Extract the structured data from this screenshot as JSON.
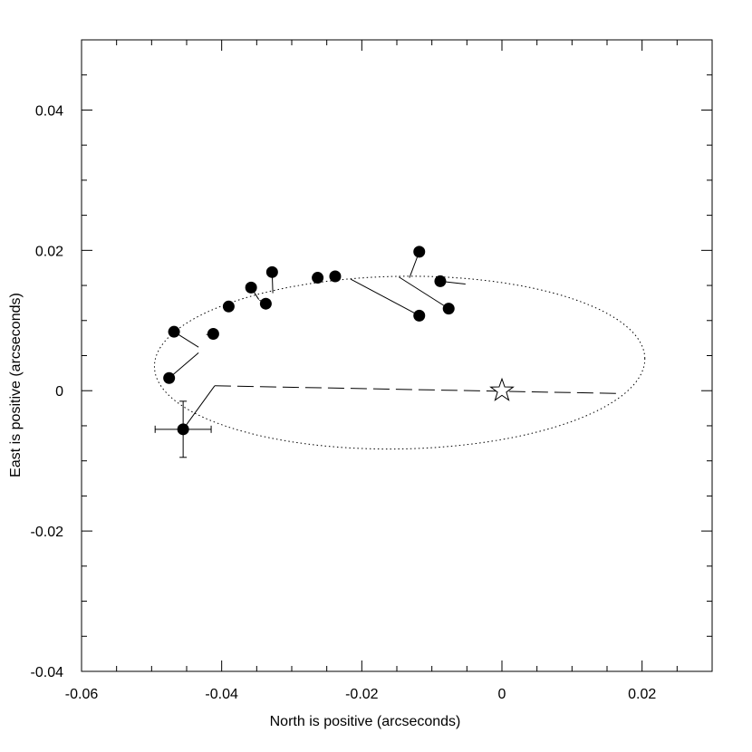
{
  "chart_data": {
    "type": "scatter",
    "xlabel": "North is positive (arcseconds)",
    "ylabel": "East is positive (arcseconds)",
    "xlim": [
      -0.06,
      0.03
    ],
    "ylim": [
      -0.04,
      0.05
    ],
    "x_ticks": [
      -0.06,
      -0.04,
      -0.02,
      0,
      0.02
    ],
    "x_tick_labels": [
      "-0.06",
      "-0.04",
      "-0.02",
      "0",
      "0.02"
    ],
    "y_ticks": [
      -0.04,
      -0.02,
      0,
      0.02,
      0.04
    ],
    "y_tick_labels": [
      "-0.04",
      "-0.02",
      "0",
      "0.02",
      "0.04"
    ],
    "x_minor_step": 0.005,
    "y_minor_step": 0.005,
    "grid": false,
    "points": [
      {
        "x": -0.0475,
        "y": 0.0018,
        "orbit_x": -0.0433,
        "orbit_y": 0.0054
      },
      {
        "x": -0.0468,
        "y": 0.0084,
        "orbit_x": -0.0433,
        "orbit_y": 0.0062
      },
      {
        "x": -0.0412,
        "y": 0.0081,
        "orbit_x": -0.0422,
        "orbit_y": 0.008
      },
      {
        "x": -0.039,
        "y": 0.012,
        "orbit_x": -0.0385,
        "orbit_y": 0.0119
      },
      {
        "x": -0.0358,
        "y": 0.0147,
        "orbit_x": -0.0347,
        "orbit_y": 0.013
      },
      {
        "x": -0.0337,
        "y": 0.0124,
        "orbit_x": -0.0346,
        "orbit_y": 0.0129
      },
      {
        "x": -0.0328,
        "y": 0.0169,
        "orbit_x": -0.0327,
        "orbit_y": 0.0139
      },
      {
        "x": -0.0263,
        "y": 0.0161,
        "orbit_x": -0.0262,
        "orbit_y": 0.0153
      },
      {
        "x": -0.0238,
        "y": 0.0163,
        "orbit_x": -0.0231,
        "orbit_y": 0.0158
      },
      {
        "x": -0.0118,
        "y": 0.0107,
        "orbit_x": -0.0216,
        "orbit_y": 0.0159
      },
      {
        "x": -0.0118,
        "y": 0.0198,
        "orbit_x": -0.0132,
        "orbit_y": 0.0161
      },
      {
        "x": -0.0088,
        "y": 0.0156,
        "orbit_x": -0.0052,
        "orbit_y": 0.0152
      },
      {
        "x": -0.0076,
        "y": 0.0117,
        "orbit_x": -0.0147,
        "orbit_y": 0.0162
      },
      {
        "x": -0.0455,
        "y": -0.0055,
        "orbit_x": -0.041,
        "orbit_y": 0.0007,
        "xerr": 0.004,
        "yerr": 0.004
      }
    ],
    "orbit": {
      "center_x": -0.0146,
      "center_y": 0.004,
      "semi_x": 0.035,
      "semi_y": 0.0123,
      "tilt_deg": -1.0
    },
    "line_of_nodes": {
      "x": [
        -0.041,
        0.0168
      ],
      "y": [
        0.0007,
        -0.0004
      ]
    },
    "star": {
      "x": 0.0,
      "y": 0.0
    }
  }
}
